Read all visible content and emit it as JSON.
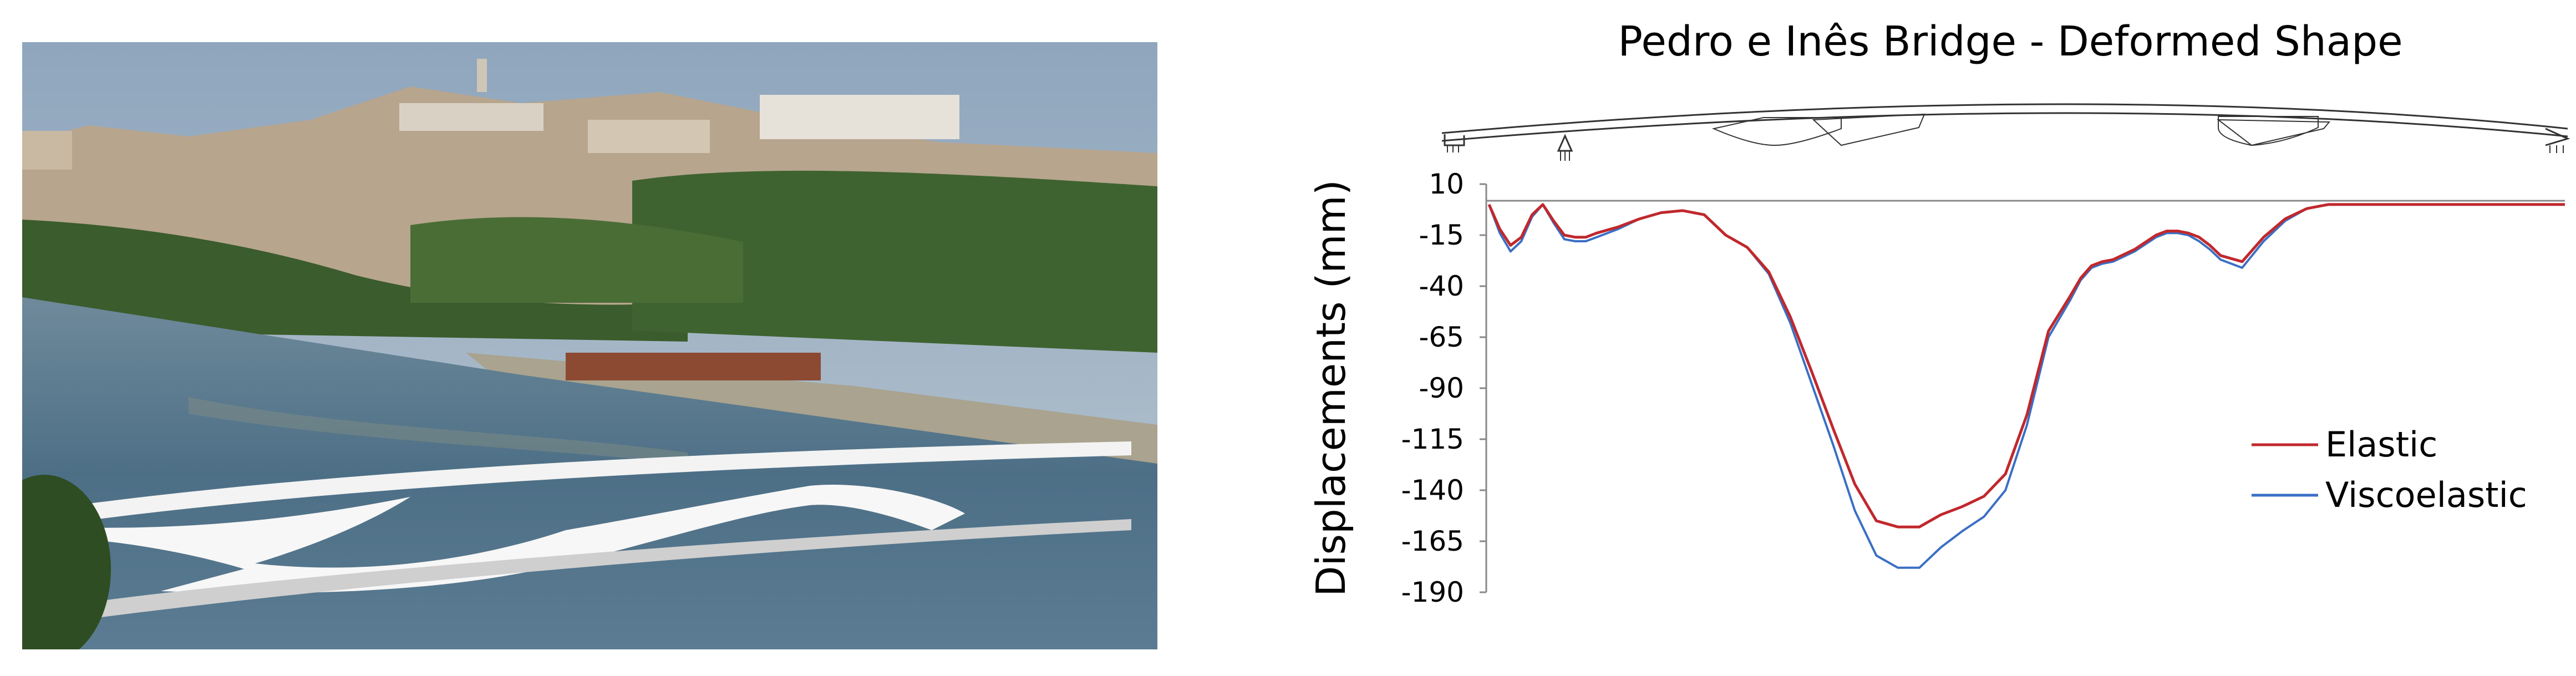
{
  "photo": {
    "subject": "pedestrian-bridge-over-river-photo"
  },
  "chart_data": {
    "type": "line",
    "title": "Pedro e Inês Bridge - Deformed Shape",
    "xlabel": "",
    "ylabel": "Displacements (mm)",
    "ylim": [
      -190,
      10
    ],
    "yticks": [
      10,
      -15,
      -40,
      -65,
      -90,
      -115,
      -140,
      -165,
      -190
    ],
    "xlim": [
      0,
      100
    ],
    "grid": false,
    "legend_position": "right",
    "colors": {
      "Elastic": "#c0282d",
      "Viscoelastic": "#3a6fc4",
      "zero_line": "#888888"
    },
    "series": [
      {
        "name": "Elastic",
        "x": [
          0,
          1,
          2,
          3,
          4,
          5,
          6,
          7,
          8,
          9,
          10,
          12,
          14,
          16,
          18,
          20,
          22,
          24,
          26,
          28,
          30,
          32,
          34,
          36,
          38,
          40,
          42,
          44,
          46,
          48,
          50,
          52,
          54,
          55,
          56,
          57,
          58,
          60,
          62,
          63,
          64,
          65,
          66,
          67,
          68,
          70,
          72,
          74,
          76,
          78,
          80,
          82,
          84,
          86,
          88,
          90,
          92,
          94,
          96,
          98,
          99,
          100
        ],
        "y": [
          0,
          -12,
          -20,
          -16,
          -5,
          0,
          -8,
          -15,
          -16,
          -16,
          -14,
          -11,
          -7,
          -4,
          -3,
          -5,
          -15,
          -21,
          -33,
          -55,
          -82,
          -110,
          -137,
          -155,
          -158,
          -158,
          -152,
          -148,
          -143,
          -132,
          -103,
          -62,
          -45,
          -36,
          -30,
          -28,
          -27,
          -22,
          -15,
          -13,
          -13,
          -14,
          -16,
          -20,
          -25,
          -28,
          -16,
          -7,
          -2,
          0,
          0,
          0,
          0,
          0,
          0,
          0,
          0,
          0,
          0,
          0,
          0,
          0
        ]
      },
      {
        "name": "Viscoelastic",
        "x": [
          0,
          1,
          2,
          3,
          4,
          5,
          6,
          7,
          8,
          9,
          10,
          12,
          14,
          16,
          18,
          20,
          22,
          24,
          26,
          28,
          30,
          32,
          34,
          36,
          38,
          40,
          42,
          44,
          46,
          48,
          50,
          52,
          54,
          55,
          56,
          57,
          58,
          60,
          62,
          63,
          64,
          65,
          66,
          67,
          68,
          70,
          72,
          74,
          76,
          78,
          80,
          82,
          84,
          86,
          88,
          90,
          92,
          94,
          96,
          98,
          99,
          100
        ],
        "y": [
          0,
          -14,
          -23,
          -18,
          -6,
          0,
          -9,
          -17,
          -18,
          -18,
          -16,
          -12,
          -7,
          -4,
          -3,
          -5,
          -15,
          -21,
          -34,
          -58,
          -88,
          -118,
          -150,
          -172,
          -178,
          -178,
          -168,
          -160,
          -153,
          -140,
          -108,
          -65,
          -47,
          -37,
          -31,
          -29,
          -28,
          -23,
          -16,
          -14,
          -14,
          -15,
          -18,
          -22,
          -27,
          -31,
          -18,
          -8,
          -2,
          0,
          0,
          0,
          0,
          0,
          0,
          0,
          0,
          0,
          0,
          0,
          0,
          0
        ]
      }
    ]
  }
}
